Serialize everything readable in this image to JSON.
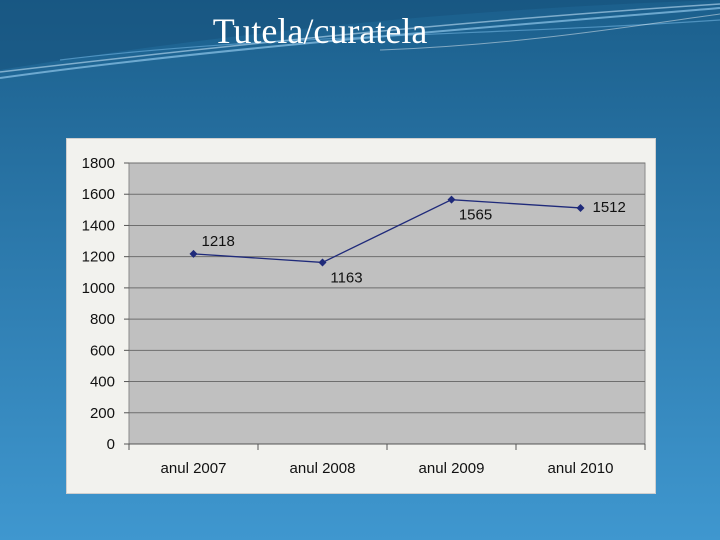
{
  "slide": {
    "title": "Tutela/curatela"
  },
  "colors": {
    "line": "#1f2a7a",
    "plot_bg": "#c0c0c0",
    "frame_bg": "#f2f2ee",
    "grid": "#6e6e6e"
  },
  "chart_data": {
    "type": "line",
    "categories": [
      "anul 2007",
      "anul 2008",
      "anul 2009",
      "anul 2010"
    ],
    "series": [
      {
        "values": [
          1218,
          1163,
          1565,
          1512
        ]
      }
    ],
    "data_labels": [
      "1218",
      "1163",
      "1565",
      "1512"
    ],
    "y_ticks": [
      "0",
      "200",
      "400",
      "600",
      "800",
      "1000",
      "1200",
      "1400",
      "1600",
      "1800"
    ],
    "ylim": [
      0,
      1800
    ],
    "grid": true,
    "legend": "none"
  }
}
